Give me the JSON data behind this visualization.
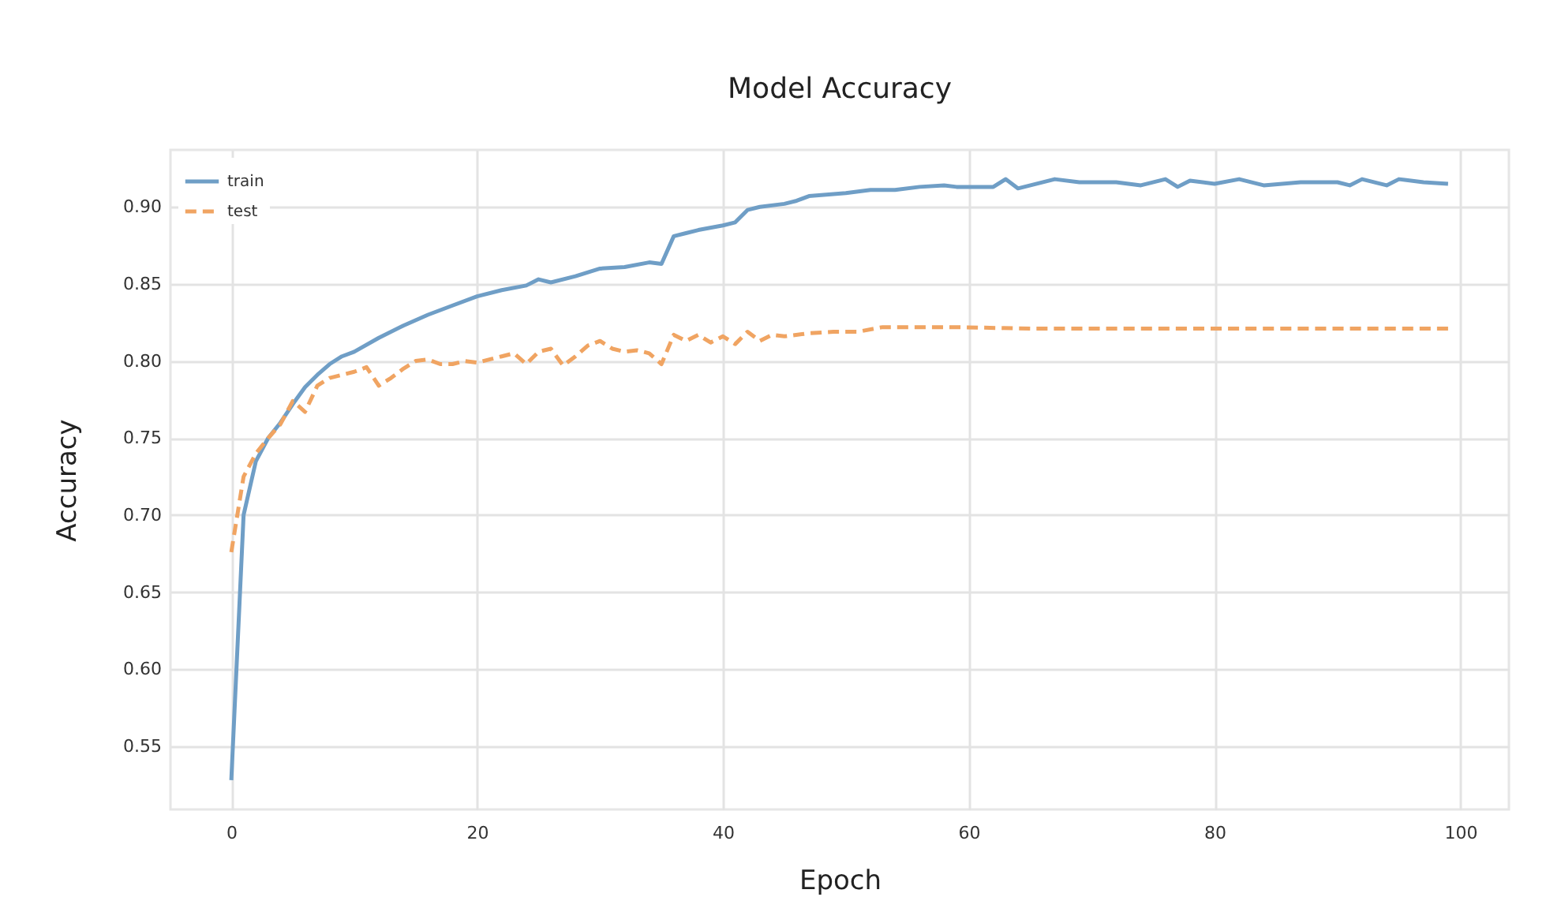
{
  "chart_data": {
    "type": "line",
    "title": "Model Accuracy",
    "xlabel": "Epoch",
    "ylabel": "Accuracy",
    "xlim": [
      -4.95,
      103.95
    ],
    "ylim": [
      0.509,
      0.937
    ],
    "xticks": [
      0,
      20,
      40,
      60,
      80,
      100
    ],
    "yticks": [
      0.55,
      {
        "value": 0.6,
        "label": "0.60"
      },
      0.65,
      {
        "value": 0.7,
        "label": "0.70"
      },
      0.75,
      {
        "value": 0.8,
        "label": "0.80"
      },
      0.85,
      {
        "value": 0.9,
        "label": "0.90"
      }
    ],
    "grid": true,
    "legend": "top left",
    "marker": "none",
    "series": [
      {
        "name": "train",
        "color": "#6f9ec6",
        "line_style": "solid",
        "x": [
          0,
          1,
          2,
          3,
          4,
          5,
          6,
          7,
          8,
          9,
          10,
          12,
          14,
          16,
          18,
          20,
          22,
          24,
          25,
          26,
          28,
          30,
          32,
          34,
          35,
          36,
          37,
          38,
          40,
          41,
          42,
          43,
          45,
          46,
          47,
          50,
          52,
          54,
          56,
          58,
          59,
          62,
          63,
          64,
          67,
          69,
          72,
          74,
          76,
          77,
          78,
          80,
          82,
          84,
          87,
          90,
          91,
          92,
          94,
          95,
          97,
          99
        ],
        "values": [
          0.528,
          0.7,
          0.735,
          0.75,
          0.76,
          0.772,
          0.783,
          0.791,
          0.798,
          0.803,
          0.806,
          0.815,
          0.823,
          0.83,
          0.836,
          0.842,
          0.846,
          0.849,
          0.853,
          0.851,
          0.855,
          0.86,
          0.861,
          0.864,
          0.863,
          0.881,
          0.883,
          0.885,
          0.888,
          0.89,
          0.898,
          0.9,
          0.902,
          0.904,
          0.907,
          0.909,
          0.911,
          0.911,
          0.913,
          0.914,
          0.913,
          0.913,
          0.918,
          0.912,
          0.918,
          0.916,
          0.916,
          0.914,
          0.918,
          0.913,
          0.917,
          0.915,
          0.918,
          0.914,
          0.916,
          0.916,
          0.914,
          0.918,
          0.914,
          0.918,
          0.916,
          0.915
        ]
      },
      {
        "name": "test",
        "color": "#f0a462",
        "line_style": "dashed",
        "x": [
          0,
          1,
          2,
          3,
          4,
          5,
          6,
          7,
          8,
          9,
          10,
          11,
          12,
          13,
          14,
          15,
          16,
          17,
          18,
          19,
          20,
          21,
          22,
          23,
          24,
          25,
          26,
          27,
          28,
          29,
          30,
          31,
          32,
          33,
          34,
          35,
          36,
          37,
          38,
          39,
          40,
          41,
          42,
          43,
          44,
          45,
          47,
          49,
          51,
          53,
          55,
          57,
          59,
          65,
          70,
          75,
          80,
          85,
          90,
          95,
          99
        ],
        "values": [
          0.676,
          0.725,
          0.74,
          0.75,
          0.759,
          0.774,
          0.767,
          0.784,
          0.789,
          0.791,
          0.793,
          0.796,
          0.784,
          0.789,
          0.795,
          0.8,
          0.801,
          0.798,
          0.798,
          0.8,
          0.799,
          0.801,
          0.803,
          0.805,
          0.798,
          0.806,
          0.808,
          0.797,
          0.803,
          0.81,
          0.813,
          0.808,
          0.806,
          0.807,
          0.805,
          0.798,
          0.817,
          0.813,
          0.817,
          0.812,
          0.816,
          0.811,
          0.819,
          0.813,
          0.817,
          0.816,
          0.818,
          0.819,
          0.819,
          0.822,
          0.822,
          0.822,
          0.822,
          0.821,
          0.821,
          0.821,
          0.821,
          0.821,
          0.821,
          0.821,
          0.821
        ]
      }
    ]
  }
}
